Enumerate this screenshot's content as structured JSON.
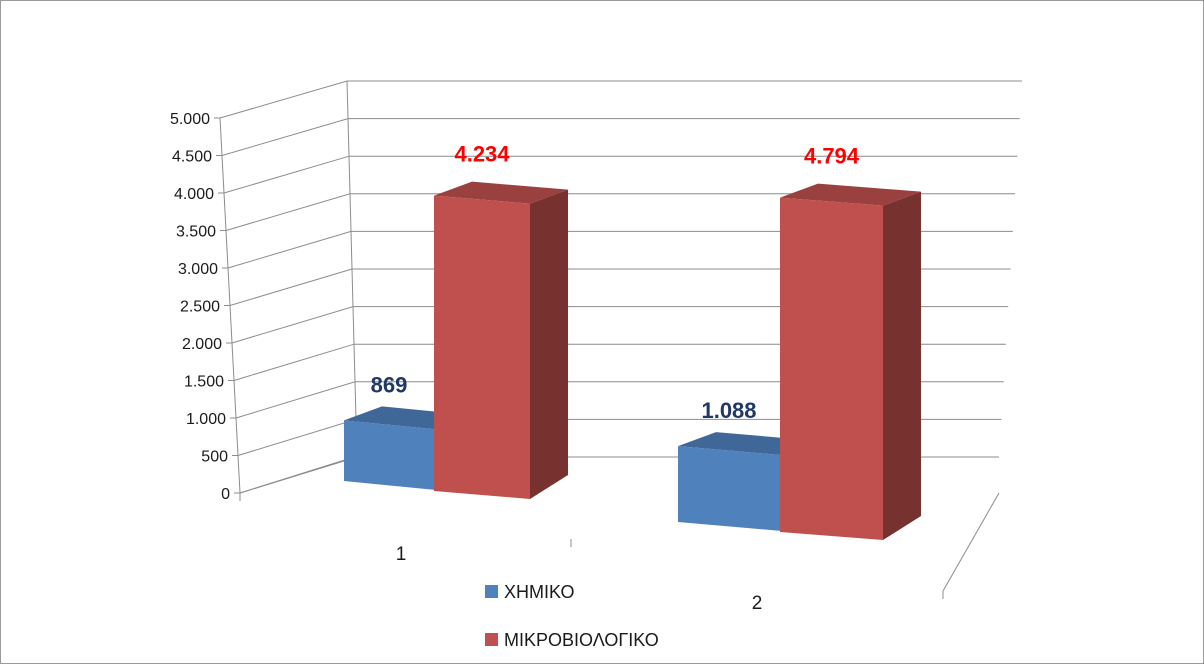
{
  "chart_data": {
    "type": "bar",
    "style": "3d-clustered-column",
    "categories": [
      "1",
      "2"
    ],
    "series": [
      {
        "name": "ΧΗΜΙΚΟ",
        "values": [
          869,
          1088
        ],
        "color": "#4f81bd",
        "label_color": "#1f3864"
      },
      {
        "name": "ΜΙΚΡΟΒΙΟΛΟΓΙΚΟ",
        "values": [
          4234,
          4794
        ],
        "color": "#c0504d",
        "label_color": "#ff0000"
      }
    ],
    "data_labels": [
      [
        "869",
        "1.088"
      ],
      [
        "4.234",
        "4.794"
      ]
    ],
    "ylim": [
      0,
      5000
    ],
    "ytick_values": [
      0,
      500,
      1000,
      1500,
      2000,
      2500,
      3000,
      3500,
      4000,
      4500,
      5000
    ],
    "ytick_labels": [
      "0",
      "500",
      "1.000",
      "1.500",
      "2.000",
      "2.500",
      "3.000",
      "3.500",
      "4.000",
      "4.500",
      "5.000"
    ],
    "grid": true,
    "legend_position": "bottom",
    "title": "",
    "xlabel": "",
    "ylabel": ""
  }
}
